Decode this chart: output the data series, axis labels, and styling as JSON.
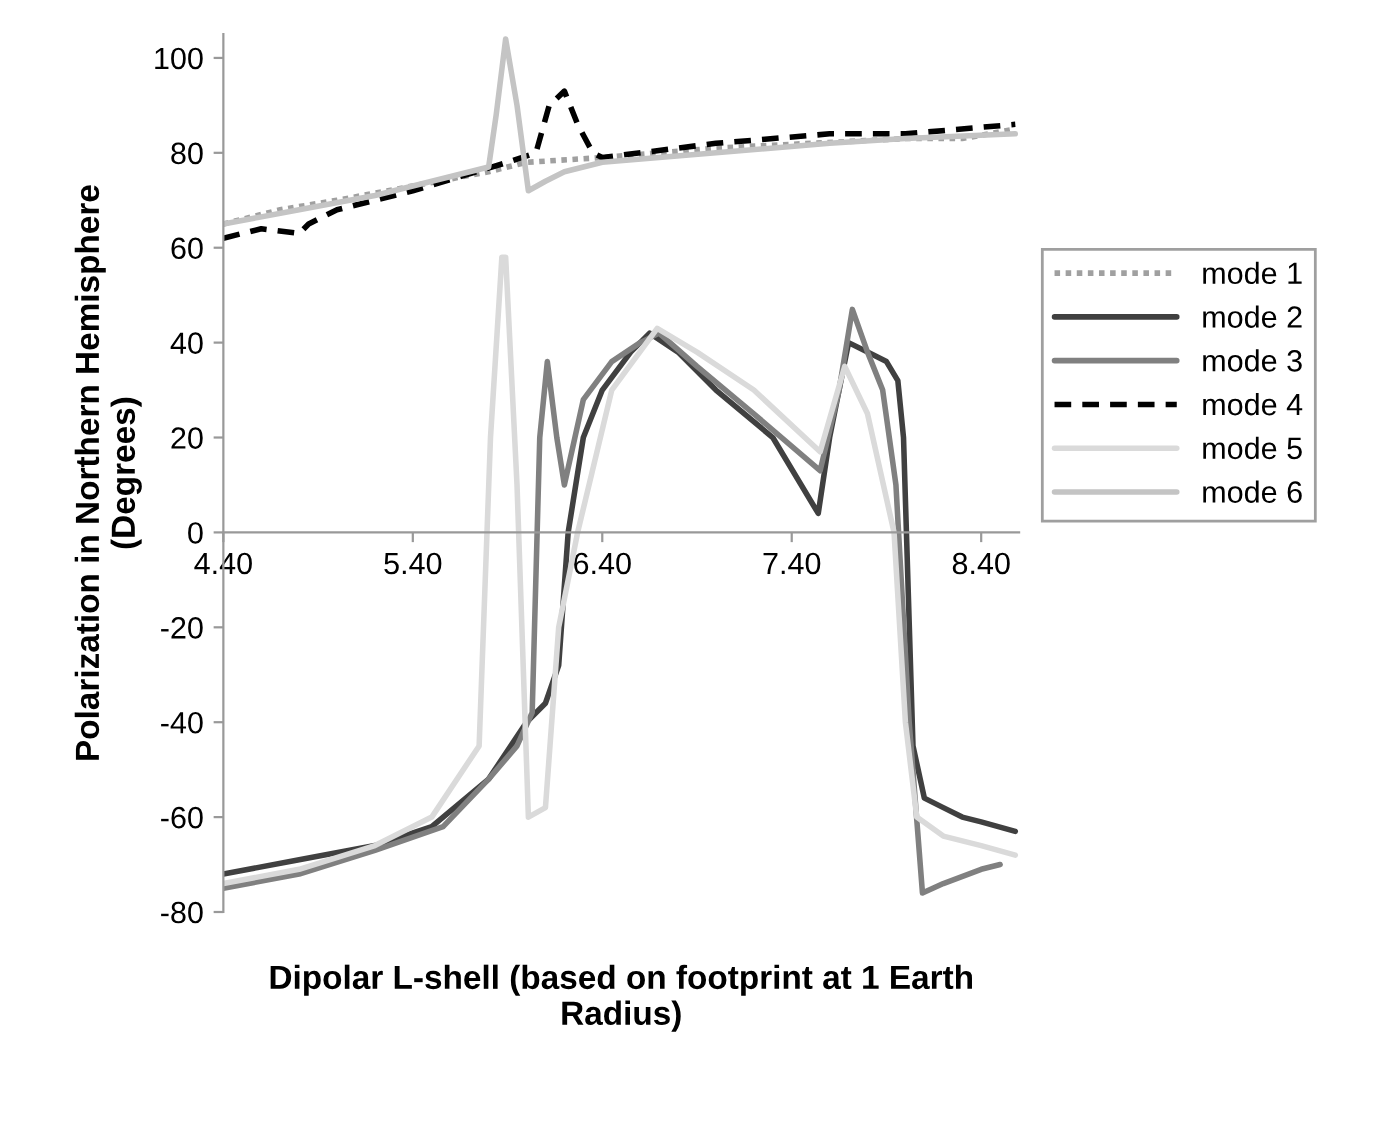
{
  "chart_data": {
    "type": "line",
    "xlabel": "Dipolar L-shell (based on footprint at 1 Earth\nRadius)",
    "ylabel": "Polarization in Northern Hemisphere\n(Degrees)",
    "xlim": [
      4.4,
      8.6
    ],
    "ylim": [
      -80,
      105
    ],
    "xticks": [
      {
        "value": 4.4,
        "label": "4.40"
      },
      {
        "value": 5.4,
        "label": "5.40"
      },
      {
        "value": 6.4,
        "label": "6.40"
      },
      {
        "value": 7.4,
        "label": "7.40"
      },
      {
        "value": 8.4,
        "label": "8.40"
      }
    ],
    "yticks": [
      -80,
      -60,
      -40,
      -20,
      0,
      20,
      40,
      60,
      80,
      100
    ],
    "grid": false,
    "legend": "right",
    "marker": "none",
    "series": [
      {
        "name": "mode 1",
        "color": "#a0a0a0",
        "line_style": "dotted",
        "x": [
          4.4,
          4.7,
          5.0,
          5.4,
          5.8,
          6.0,
          6.4,
          7.0,
          7.5,
          8.0,
          8.3,
          8.58
        ],
        "values": [
          65,
          68,
          70,
          73,
          76,
          78,
          79,
          81,
          82,
          83,
          83,
          85
        ]
      },
      {
        "name": "mode 2",
        "color": "#404040",
        "line_style": "solid",
        "x": [
          4.4,
          4.8,
          5.2,
          5.5,
          5.8,
          6.0,
          6.1,
          6.17,
          6.22,
          6.3,
          6.4,
          6.55,
          6.65,
          6.8,
          7.0,
          7.3,
          7.54,
          7.6,
          7.7,
          7.8,
          7.9,
          7.96,
          7.99,
          8.04,
          8.1,
          8.2,
          8.3,
          8.4,
          8.58
        ],
        "values": [
          -72,
          -69,
          -66,
          -62,
          -52,
          -40,
          -36,
          -28,
          0,
          20,
          30,
          38,
          42,
          38,
          30,
          20,
          4,
          20,
          40,
          38,
          36,
          32,
          20,
          -45,
          -56,
          -58,
          -60,
          -61,
          -63
        ]
      },
      {
        "name": "mode 3",
        "color": "#808080",
        "line_style": "solid",
        "x": [
          4.4,
          4.8,
          5.2,
          5.56,
          5.8,
          5.95,
          6.03,
          6.07,
          6.11,
          6.16,
          6.2,
          6.3,
          6.45,
          6.6,
          6.7,
          6.9,
          7.2,
          7.55,
          7.65,
          7.72,
          7.8,
          7.88,
          7.95,
          8.02,
          8.09,
          8.2,
          8.4,
          8.5
        ],
        "values": [
          -75,
          -72,
          -67,
          -62,
          -52,
          -45,
          -38,
          20,
          36,
          20,
          10,
          28,
          36,
          40,
          42,
          35,
          25,
          13,
          30,
          47,
          38,
          30,
          10,
          -40,
          -76,
          -74,
          -71,
          -70
        ]
      },
      {
        "name": "mode 4",
        "color": "#000000",
        "line_style": "dashed",
        "x": [
          4.4,
          4.6,
          4.8,
          4.85,
          5.0,
          5.4,
          5.9,
          6.05,
          6.12,
          6.2,
          6.27,
          6.35,
          6.4,
          7.0,
          7.6,
          8.0,
          8.58
        ],
        "values": [
          62,
          64,
          63,
          65,
          68,
          72,
          78,
          80,
          90,
          93,
          86,
          80,
          79,
          82,
          84,
          84,
          86
        ]
      },
      {
        "name": "mode 5",
        "color": "#dadada",
        "line_style": "solid",
        "x": [
          4.4,
          4.8,
          5.2,
          5.5,
          5.75,
          5.81,
          5.87,
          5.89,
          5.95,
          6.01,
          6.1,
          6.17,
          6.27,
          6.45,
          6.69,
          6.9,
          7.2,
          7.55,
          7.68,
          7.8,
          7.94,
          8.0,
          8.06,
          8.2,
          8.4,
          8.58
        ],
        "values": [
          -74,
          -71,
          -66,
          -60,
          -45,
          20,
          58,
          58,
          10,
          -60,
          -58,
          -20,
          0,
          30,
          43,
          38,
          30,
          17,
          35,
          25,
          0,
          -40,
          -60,
          -64,
          -66,
          -68
        ]
      },
      {
        "name": "mode 6",
        "color": "#c4c4c4",
        "line_style": "solid",
        "x": [
          4.4,
          4.8,
          5.2,
          5.6,
          5.8,
          5.84,
          5.89,
          5.95,
          6.01,
          6.1,
          6.2,
          6.4,
          7.0,
          7.6,
          8.0,
          8.58
        ],
        "values": [
          65,
          68,
          71,
          75,
          77,
          88,
          104,
          90,
          72,
          74,
          76,
          78,
          80,
          82,
          83,
          84
        ]
      }
    ]
  }
}
